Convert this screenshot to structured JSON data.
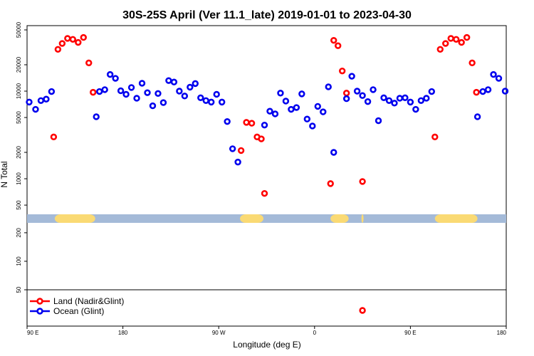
{
  "chart_data": {
    "type": "scatter",
    "title": "30S-25S April (Ver 11.1_late)   2019-01-01 to 2023-04-30",
    "xlabel": "Longitude (deg E)",
    "ylabel": "N Total",
    "y_scale": "log",
    "x_ticks": [
      {
        "value": 0,
        "label": "90 E"
      },
      {
        "value": 90,
        "label": "180"
      },
      {
        "value": 180,
        "label": "90 W"
      },
      {
        "value": 270,
        "label": "0"
      },
      {
        "value": 360,
        "label": "90 E"
      },
      {
        "value": 450,
        "label": "180"
      }
    ],
    "y_ticks_upper": [
      500,
      1000,
      2000,
      5000,
      10000,
      20000,
      50000
    ],
    "y_ticks_lower": [
      50,
      100,
      200
    ],
    "xlim": [
      0,
      450
    ],
    "land_mask_bands": [
      {
        "from": 26,
        "to": 64
      },
      {
        "from": 200,
        "to": 222
      },
      {
        "from": 285,
        "to": 302
      },
      {
        "from": 314,
        "to": 316
      },
      {
        "from": 383,
        "to": 423
      }
    ],
    "series": [
      {
        "name": "Land (Nadir&Glint)",
        "color": "#ff0000",
        "points": [
          [
            25,
            3000
          ],
          [
            29,
            30000
          ],
          [
            33,
            35000
          ],
          [
            38,
            40000
          ],
          [
            43,
            39000
          ],
          [
            48,
            36000
          ],
          [
            53,
            41000
          ],
          [
            58,
            21000
          ],
          [
            62,
            9700
          ],
          [
            201,
            2100
          ],
          [
            206,
            4400
          ],
          [
            211,
            4300
          ],
          [
            216,
            3000
          ],
          [
            220,
            2850
          ],
          [
            223,
            680
          ],
          [
            285,
            880
          ],
          [
            288,
            38000
          ],
          [
            292,
            33000
          ],
          [
            296,
            17000
          ],
          [
            300,
            9500
          ],
          [
            315,
            930
          ],
          [
            315,
            28
          ],
          [
            383,
            3000
          ],
          [
            388,
            30000
          ],
          [
            393,
            35000
          ],
          [
            398,
            40000
          ],
          [
            403,
            39000
          ],
          [
            408,
            36000
          ],
          [
            413,
            41000
          ],
          [
            418,
            21000
          ],
          [
            422,
            9700
          ]
        ]
      },
      {
        "name": "Ocean (Glint)",
        "color": "#0000ee",
        "points": [
          [
            2,
            7500
          ],
          [
            8,
            6200
          ],
          [
            13,
            7800
          ],
          [
            18,
            8100
          ],
          [
            23,
            9900
          ],
          [
            65,
            5100
          ],
          [
            68,
            9900
          ],
          [
            73,
            10400
          ],
          [
            78,
            15500
          ],
          [
            83,
            14000
          ],
          [
            88,
            10100
          ],
          [
            93,
            9200
          ],
          [
            98,
            11000
          ],
          [
            103,
            8300
          ],
          [
            108,
            12300
          ],
          [
            113,
            9600
          ],
          [
            118,
            6800
          ],
          [
            123,
            9400
          ],
          [
            128,
            7400
          ],
          [
            133,
            13200
          ],
          [
            138,
            12700
          ],
          [
            143,
            10000
          ],
          [
            148,
            8800
          ],
          [
            153,
            11100
          ],
          [
            158,
            12200
          ],
          [
            163,
            8400
          ],
          [
            168,
            7800
          ],
          [
            173,
            7500
          ],
          [
            178,
            9200
          ],
          [
            183,
            7500
          ],
          [
            188,
            4500
          ],
          [
            193,
            2200
          ],
          [
            198,
            1550
          ],
          [
            223,
            4100
          ],
          [
            228,
            5900
          ],
          [
            233,
            5500
          ],
          [
            238,
            9500
          ],
          [
            243,
            7700
          ],
          [
            248,
            6200
          ],
          [
            253,
            6500
          ],
          [
            258,
            9300
          ],
          [
            263,
            4800
          ],
          [
            268,
            4000
          ],
          [
            273,
            6700
          ],
          [
            278,
            5800
          ],
          [
            283,
            11200
          ],
          [
            288,
            2000
          ],
          [
            300,
            8200
          ],
          [
            305,
            14800
          ],
          [
            310,
            10000
          ],
          [
            315,
            8900
          ],
          [
            320,
            7600
          ],
          [
            325,
            10400
          ],
          [
            330,
            4600
          ],
          [
            335,
            8400
          ],
          [
            340,
            7800
          ],
          [
            345,
            7300
          ],
          [
            350,
            8300
          ],
          [
            355,
            8400
          ],
          [
            360,
            7500
          ],
          [
            365,
            6200
          ],
          [
            370,
            7800
          ],
          [
            375,
            8300
          ],
          [
            380,
            9900
          ],
          [
            423,
            5100
          ],
          [
            428,
            9900
          ],
          [
            433,
            10400
          ],
          [
            438,
            15500
          ],
          [
            443,
            14000
          ],
          [
            449,
            10000
          ]
        ]
      }
    ],
    "legend_position": "bottom-left"
  },
  "colors": {
    "mask_ocean": "#a4bad8",
    "mask_land": "#fada74"
  }
}
